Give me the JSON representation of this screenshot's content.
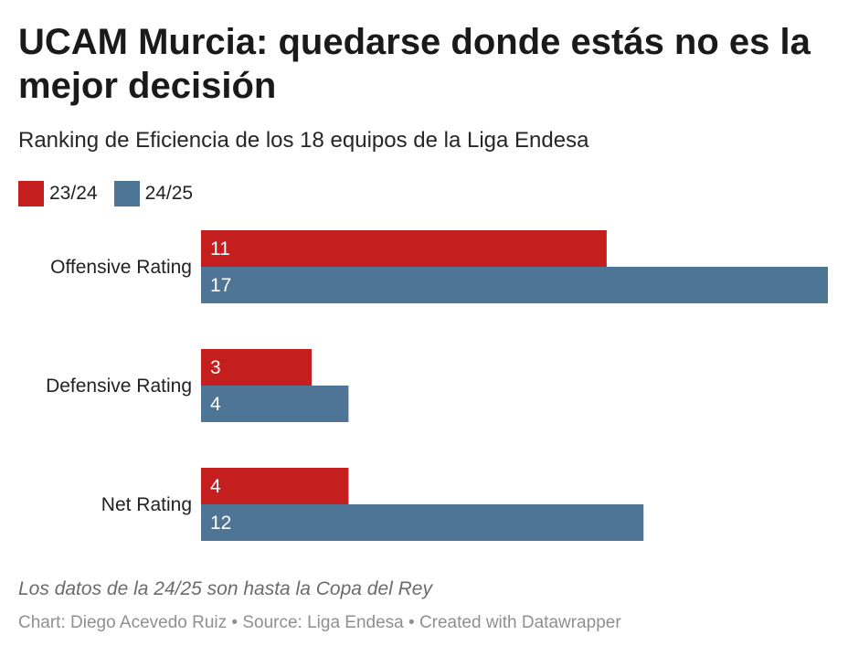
{
  "title": "UCAM Murcia: quedarse donde estás no es la mejor decisión",
  "subtitle": "Ranking de Eficiencia de los 18 equipos de la Liga Endesa",
  "note": "Los datos de la 24/25 son hasta la Copa del Rey",
  "credit": "Chart: Diego Acevedo Ruiz • Source: Liga Endesa • Created with Datawrapper",
  "colors": {
    "s2324": "#c41e1f",
    "s2425": "#4e7496"
  },
  "chart_data": {
    "type": "bar",
    "orientation": "horizontal",
    "title": "UCAM Murcia: quedarse donde estás no es la mejor decisión",
    "subtitle": "Ranking de Eficiencia de los 18 equipos de la Liga Endesa",
    "categories": [
      "Offensive Rating",
      "Defensive Rating",
      "Net Rating"
    ],
    "series": [
      {
        "name": "23/24",
        "values": [
          11,
          3,
          4
        ]
      },
      {
        "name": "24/25",
        "values": [
          17,
          4,
          12
        ]
      }
    ],
    "xlim": [
      0,
      17
    ],
    "grid": false,
    "legend": "top-left"
  }
}
